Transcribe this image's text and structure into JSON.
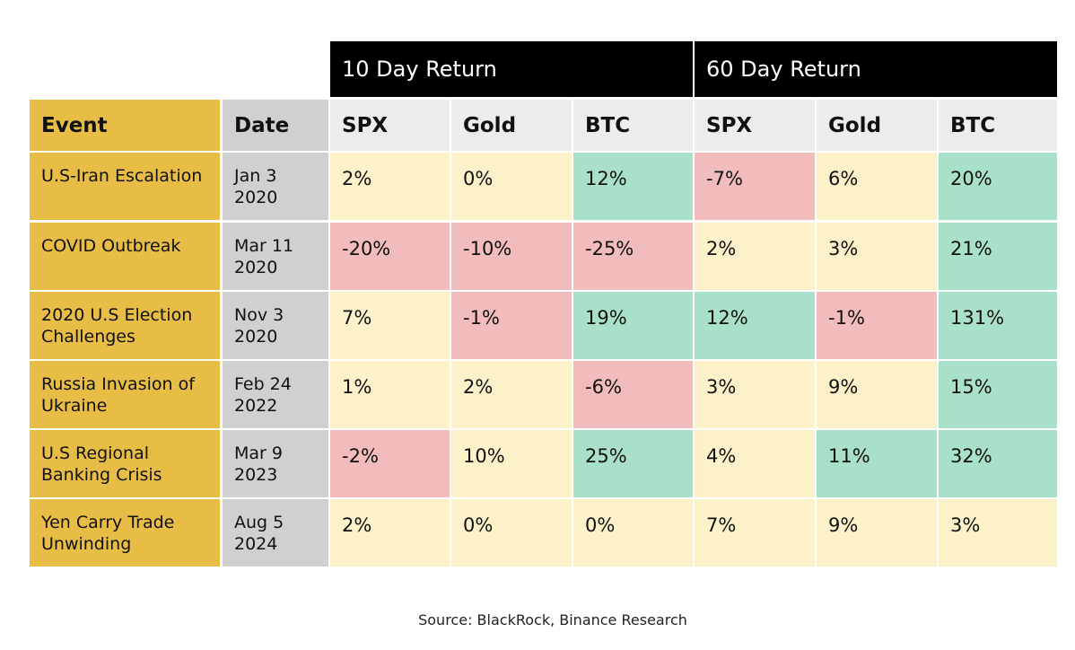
{
  "group_headers": [
    "10 Day Return",
    "60 Day Return"
  ],
  "headers": [
    "Event",
    "Date",
    "SPX",
    "Gold",
    "BTC",
    "SPX",
    "Gold",
    "BTC"
  ],
  "rows": [
    {
      "event": "U.S-Iran Escalation",
      "date": "Jan 3\n2020",
      "values": [
        "2%",
        "0%",
        "12%",
        "-7%",
        "6%",
        "20%"
      ],
      "status": [
        "neutral",
        "neutral",
        "positive",
        "negative",
        "neutral",
        "positive"
      ]
    },
    {
      "event": "COVID Outbreak",
      "date": "Mar 11\n2020",
      "values": [
        "-20%",
        "-10%",
        "-25%",
        "2%",
        "3%",
        "21%"
      ],
      "status": [
        "negative",
        "negative",
        "negative",
        "neutral",
        "neutral",
        "positive"
      ]
    },
    {
      "event": "2020 U.S Election\nChallenges",
      "date": "Nov 3\n2020",
      "values": [
        "7%",
        "-1%",
        "19%",
        "12%",
        "-1%",
        "131%"
      ],
      "status": [
        "neutral",
        "negative",
        "positive",
        "positive",
        "negative",
        "positive"
      ]
    },
    {
      "event": "Russia Invasion of\nUkraine",
      "date": "Feb 24\n2022",
      "values": [
        "1%",
        "2%",
        "-6%",
        "3%",
        "9%",
        "15%"
      ],
      "status": [
        "neutral",
        "neutral",
        "negative",
        "neutral",
        "neutral",
        "positive"
      ]
    },
    {
      "event": "U.S Regional\nBanking Crisis",
      "date": "Mar 9\n2023",
      "values": [
        "-2%",
        "10%",
        "25%",
        "4%",
        "11%",
        "32%"
      ],
      "status": [
        "negative",
        "neutral",
        "positive",
        "neutral",
        "positive",
        "positive"
      ]
    },
    {
      "event": "Yen Carry Trade\nUnwinding",
      "date": "Aug 5\n2024",
      "values": [
        "2%",
        "0%",
        "0%",
        "7%",
        "9%",
        "3%"
      ],
      "status": [
        "neutral",
        "neutral",
        "neutral",
        "neutral",
        "neutral",
        "neutral"
      ]
    }
  ],
  "source": "Source: BlackRock, Binance Research",
  "colors": {
    "header_event_bg": "#e8bd45",
    "header_date_bg": "#d0d0d0",
    "header_metric_bg": "#ececec",
    "group_header_bg": "#000000",
    "event_col_bg": "#e8bd45",
    "date_col_bg": "#d0d0d0",
    "neutral": "#fcf1c8",
    "negative": "#f2bcbc",
    "positive": "#a9e0c9"
  },
  "chart_data": {
    "type": "table",
    "columns": [
      "Event",
      "Date",
      "10 Day Return SPX",
      "10 Day Return Gold",
      "10 Day Return BTC",
      "60 Day Return SPX",
      "60 Day Return Gold",
      "60 Day Return BTC"
    ],
    "rows": [
      [
        "U.S-Iran Escalation",
        "Jan 3 2020",
        2,
        0,
        12,
        -7,
        6,
        20
      ],
      [
        "COVID Outbreak",
        "Mar 11 2020",
        -20,
        -10,
        -25,
        2,
        3,
        21
      ],
      [
        "2020 U.S Election Challenges",
        "Nov 3 2020",
        7,
        -1,
        19,
        12,
        -1,
        131
      ],
      [
        "Russia Invasion of Ukraine",
        "Feb 24 2022",
        1,
        2,
        -6,
        3,
        9,
        15
      ],
      [
        "U.S Regional Banking Crisis",
        "Mar 9 2023",
        -2,
        10,
        25,
        4,
        11,
        32
      ],
      [
        "Yen Carry Trade Unwinding",
        "Aug 5 2024",
        2,
        0,
        0,
        7,
        9,
        3
      ]
    ]
  }
}
